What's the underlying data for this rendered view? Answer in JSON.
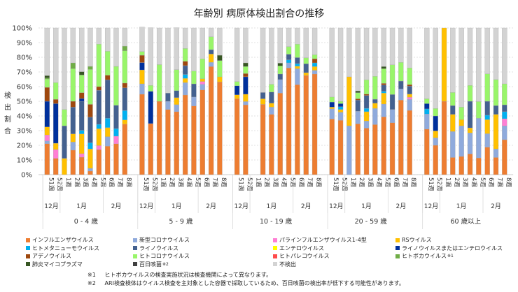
{
  "chart_data": {
    "type": "bar",
    "stacked": true,
    "title": "年齢別 病原体検出割合の推移",
    "ylabel": "検出割合",
    "ylim": [
      0,
      100
    ],
    "yticks": [
      "0%",
      "10%",
      "20%",
      "30%",
      "40%",
      "50%",
      "60%",
      "70%",
      "80%",
      "90%",
      "100%"
    ],
    "grid": true,
    "legend_position": "bottom",
    "groups": [
      "0 - 4 歳",
      "5 - 9 歳",
      "10 - 19 歳",
      "20 - 59 歳",
      "60 歳以上"
    ],
    "months": [
      {
        "label": "12月",
        "weeks": 2
      },
      {
        "label": "1月",
        "weeks": 5
      },
      {
        "label": "2月",
        "weeks": 3
      }
    ],
    "weeks": [
      "51週",
      "52週",
      "1週",
      "2週",
      "3週",
      "4週",
      "5週",
      "6週",
      "7週",
      "8週"
    ],
    "series": [
      {
        "name": "インフルエンザウイルス",
        "color": "#ED7D31",
        "values": [
          21.1,
          11.1,
          0,
          16.7,
          11.9,
          2.4,
          17,
          19.4,
          21,
          34.4,
          54.8,
          34.8,
          50,
          44.4,
          42.9,
          54.3,
          46.8,
          57.8,
          73.7,
          63.2,
          51.7,
          47.6,
          0,
          47.9,
          41.1,
          55.6,
          72.7,
          61.3,
          67.6,
          68.6,
          37.9,
          37,
          0,
          34.6,
          31.7,
          34.1,
          39.4,
          35.4,
          50.8,
          43.8,
          31,
          20,
          50,
          11.7,
          12.4,
          14.1,
          11.4,
          18.7,
          11.7,
          23.8
        ]
      },
      {
        "name": "新型コロナウイルス",
        "color": "#8FAADC",
        "values": [
          1.9,
          0,
          0,
          5.5,
          0,
          1.9,
          0,
          6.5,
          0,
          0,
          7.1,
          0,
          0,
          5.6,
          4.8,
          8.4,
          6.1,
          3.8,
          2.8,
          0,
          0,
          2.2,
          0,
          0,
          4.9,
          9.2,
          3.5,
          10.9,
          0,
          2.5,
          7,
          5.5,
          33.3,
          8.6,
          4.8,
          11,
          8.7,
          9,
          7.6,
          7.5,
          10.3,
          5.1,
          0,
          17.7,
          20.9,
          14.3,
          27,
          9.2,
          5.8,
          9.5
        ]
      },
      {
        "name": "パラインフルエンザウイルス1-4型",
        "color": "#FF7FD4",
        "values": [
          4,
          6,
          0,
          0,
          2.4,
          0,
          2.8,
          0,
          5.2,
          0,
          0,
          0,
          0,
          0,
          0,
          0,
          0,
          1.9,
          0,
          0,
          0,
          0,
          0,
          0,
          0,
          0,
          0,
          0,
          0,
          0,
          0,
          0,
          0,
          0,
          0,
          0,
          0,
          0,
          0,
          1.4,
          0,
          0,
          0,
          0,
          0,
          0,
          0,
          0,
          0,
          4.8
        ]
      },
      {
        "name": "RSウイルス",
        "color": "#FFC000",
        "values": [
          5.5,
          4.3,
          11.1,
          5.6,
          13.5,
          13.2,
          11.5,
          6.2,
          0,
          2.9,
          9.5,
          0,
          0,
          0,
          4.8,
          2.9,
          0,
          1.9,
          5.7,
          3.5,
          2.7,
          5,
          0,
          3.8,
          2.7,
          0,
          0,
          1.7,
          1.9,
          2.6,
          1.1,
          1.9,
          33.4,
          0,
          6.4,
          3.6,
          7.5,
          0,
          0,
          2.2,
          0,
          4.7,
          50,
          11.7,
          4.2,
          3.5,
          0,
          9.6,
          23.6,
          0
        ]
      },
      {
        "name": "ヒトメタニューモウイルス",
        "color": "#00B0F0",
        "values": [
          0,
          0,
          0,
          0,
          2.4,
          4.2,
          3,
          6.3,
          5.2,
          6.4,
          0,
          0,
          0,
          0,
          0,
          2.7,
          0,
          0,
          0,
          0,
          0,
          0,
          0,
          0,
          0,
          0,
          2.1,
          1.8,
          0,
          2.5,
          0,
          1.9,
          0,
          0,
          2.3,
          0,
          1.2,
          0,
          0,
          0,
          3.5,
          0,
          0,
          0,
          0,
          0,
          0,
          3,
          0,
          4.8
        ]
      },
      {
        "name": "ライノウイルス",
        "color": "#44618F",
        "values": [
          0,
          0,
          22.2,
          18.2,
          19.8,
          17.5,
          23.2,
          26.2,
          15.9,
          15.5,
          0,
          0,
          0,
          5.6,
          4.8,
          6,
          9,
          0,
          3,
          0,
          0,
          0,
          0,
          4.3,
          7.6,
          3.8,
          3.8,
          4.1,
          6.1,
          0,
          0,
          0,
          0,
          7.6,
          8.8,
          2.7,
          4.3,
          10.2,
          5.4,
          5.4,
          0,
          0,
          0,
          6,
          0,
          18.1,
          0,
          9.5,
          6,
          4.7
        ]
      },
      {
        "name": "エンテロウイルス",
        "color": "#FFFF00",
        "values": [
          0,
          0,
          0,
          0,
          0,
          0,
          0,
          0,
          0,
          0,
          0,
          0,
          0,
          0,
          0,
          0,
          0,
          0,
          0,
          0,
          0,
          0,
          0,
          0,
          0,
          0,
          0,
          0,
          0,
          0,
          0,
          0,
          0,
          0,
          0,
          0,
          0,
          0,
          0,
          0,
          0,
          0,
          0,
          0,
          0,
          0,
          0,
          0,
          0,
          0
        ]
      },
      {
        "name": "ライノウイルスまたはエンテロウイルス",
        "color": "#00309C",
        "values": [
          17.5,
          27,
          0,
          0,
          1.9,
          0,
          0,
          0,
          0,
          0,
          5,
          22,
          0,
          0,
          0,
          0,
          0,
          0,
          0,
          0,
          6.2,
          11.9,
          0,
          0,
          0,
          0,
          0,
          0,
          0,
          0,
          3.5,
          2.1,
          0,
          0,
          0,
          0,
          0,
          0,
          0,
          0,
          3.6,
          10.2,
          0,
          0,
          0,
          0,
          0,
          0,
          0,
          0
        ]
      },
      {
        "name": "アデノウイルス",
        "color": "#9E480E",
        "values": [
          9.5,
          2.9,
          0,
          4,
          4,
          8.7,
          2.5,
          3.2,
          0,
          3.2,
          5,
          0,
          0,
          0,
          0,
          3,
          0,
          0,
          0,
          0,
          0,
          2.2,
          0,
          0,
          0,
          0,
          0,
          0,
          0,
          2.8,
          0,
          0,
          0,
          0.9,
          0.9,
          0,
          1.1,
          0,
          0,
          1.1,
          0,
          0,
          0,
          0,
          0,
          0,
          0,
          0,
          0,
          0
        ]
      },
      {
        "name": "ヒトコロナウイルス",
        "color": "#99F56A",
        "values": [
          5.6,
          11.4,
          11.1,
          22.2,
          12,
          23.8,
          28.9,
          16.3,
          26.5,
          22,
          2.5,
          4,
          25,
          0,
          14.3,
          8.7,
          8.7,
          13.5,
          8.8,
          11.1,
          2.9,
          4.8,
          0,
          0,
          5.3,
          5.5,
          5.2,
          9.1,
          4.1,
          2.7,
          3.4,
          1.6,
          0,
          4.2,
          9.7,
          15.6,
          10,
          20.3,
          12.7,
          11.3,
          3.3,
          5.1,
          0,
          8.9,
          8.5,
          10.8,
          11.4,
          18.7,
          17.7,
          14.3
        ]
      },
      {
        "name": "ヒトパレコウイルス",
        "color": "#FF4B4B",
        "values": [
          0,
          0,
          0,
          0,
          0,
          0,
          0,
          0,
          0,
          0,
          0,
          0,
          0,
          0,
          0,
          0,
          0,
          0,
          0,
          0,
          0,
          0,
          0,
          0,
          0,
          0,
          0,
          0,
          0,
          0,
          0,
          0,
          0,
          0,
          0,
          0,
          0,
          0,
          0,
          0,
          0,
          0,
          0,
          0,
          0,
          0,
          0,
          0,
          0,
          0
        ]
      },
      {
        "name": "ヒトボカウイルス",
        "sup": "※1",
        "color": "#70AD47",
        "values": [
          0.8,
          0,
          0,
          4,
          0,
          2.1,
          0,
          0,
          0,
          3.2,
          0,
          0,
          0,
          0,
          0,
          0,
          0,
          0,
          0,
          0,
          0,
          0,
          0,
          0,
          0,
          0,
          0,
          0,
          0,
          0,
          0,
          0,
          0,
          0,
          0,
          0,
          0,
          0,
          0,
          0,
          0,
          0,
          0,
          0,
          0,
          0,
          0,
          0,
          0,
          0
        ]
      },
      {
        "name": "肺炎マイコプラズマ",
        "color": "#375623",
        "values": [
          1.6,
          0,
          0,
          0,
          2.3,
          0,
          0,
          0,
          0,
          0,
          0,
          0,
          0,
          0,
          0,
          0,
          0,
          0,
          0,
          3.6,
          0,
          2.5,
          0,
          0,
          0,
          1.9,
          0,
          0,
          0,
          0,
          0,
          0,
          0,
          1.2,
          0,
          0,
          1.5,
          0,
          0,
          0,
          0,
          0,
          0,
          0,
          0,
          0,
          0,
          0,
          0,
          0
        ]
      },
      {
        "name": "百日咳菌",
        "sup": "※2",
        "color": "#404040",
        "values": [
          0,
          0,
          0,
          0,
          0,
          0,
          0,
          0,
          0,
          0,
          0,
          0,
          0,
          0,
          0,
          0,
          0,
          0,
          0,
          0,
          0,
          0,
          0,
          0,
          0,
          0,
          0,
          0,
          0,
          0,
          0,
          0,
          0,
          0,
          0,
          0,
          0,
          0,
          0,
          0,
          0,
          0,
          0,
          0,
          0,
          0,
          0,
          0,
          0,
          0
        ]
      },
      {
        "name": "不検出",
        "color": "#D3D3D3",
        "values": [
          32.5,
          37.3,
          55.6,
          23.8,
          29.8,
          26.2,
          11.1,
          15.9,
          26.2,
          12.4,
          16.7,
          39.4,
          25,
          44.4,
          28.6,
          14,
          29.4,
          21.1,
          6,
          18.6,
          36.5,
          23.8,
          0,
          44,
          38.4,
          24,
          12.7,
          11.1,
          20.3,
          18.3,
          47.1,
          50,
          33.3,
          42.9,
          35.4,
          33,
          26.3,
          25.1,
          23.5,
          27.3,
          48.3,
          54.9,
          0,
          44,
          54,
          39.2,
          50.2,
          31.3,
          35.2,
          38.1
        ]
      }
    ]
  },
  "notes": [
    {
      "mark": "※1",
      "text": "ヒトボカウイルスの検査実施状況は検査機関によって異なります。"
    },
    {
      "mark": "※2",
      "text": "ARI検査検体はウイルス検査を主対象とした容器で採取しているため、百日咳菌の検出率が低下する可能性があります。"
    }
  ]
}
